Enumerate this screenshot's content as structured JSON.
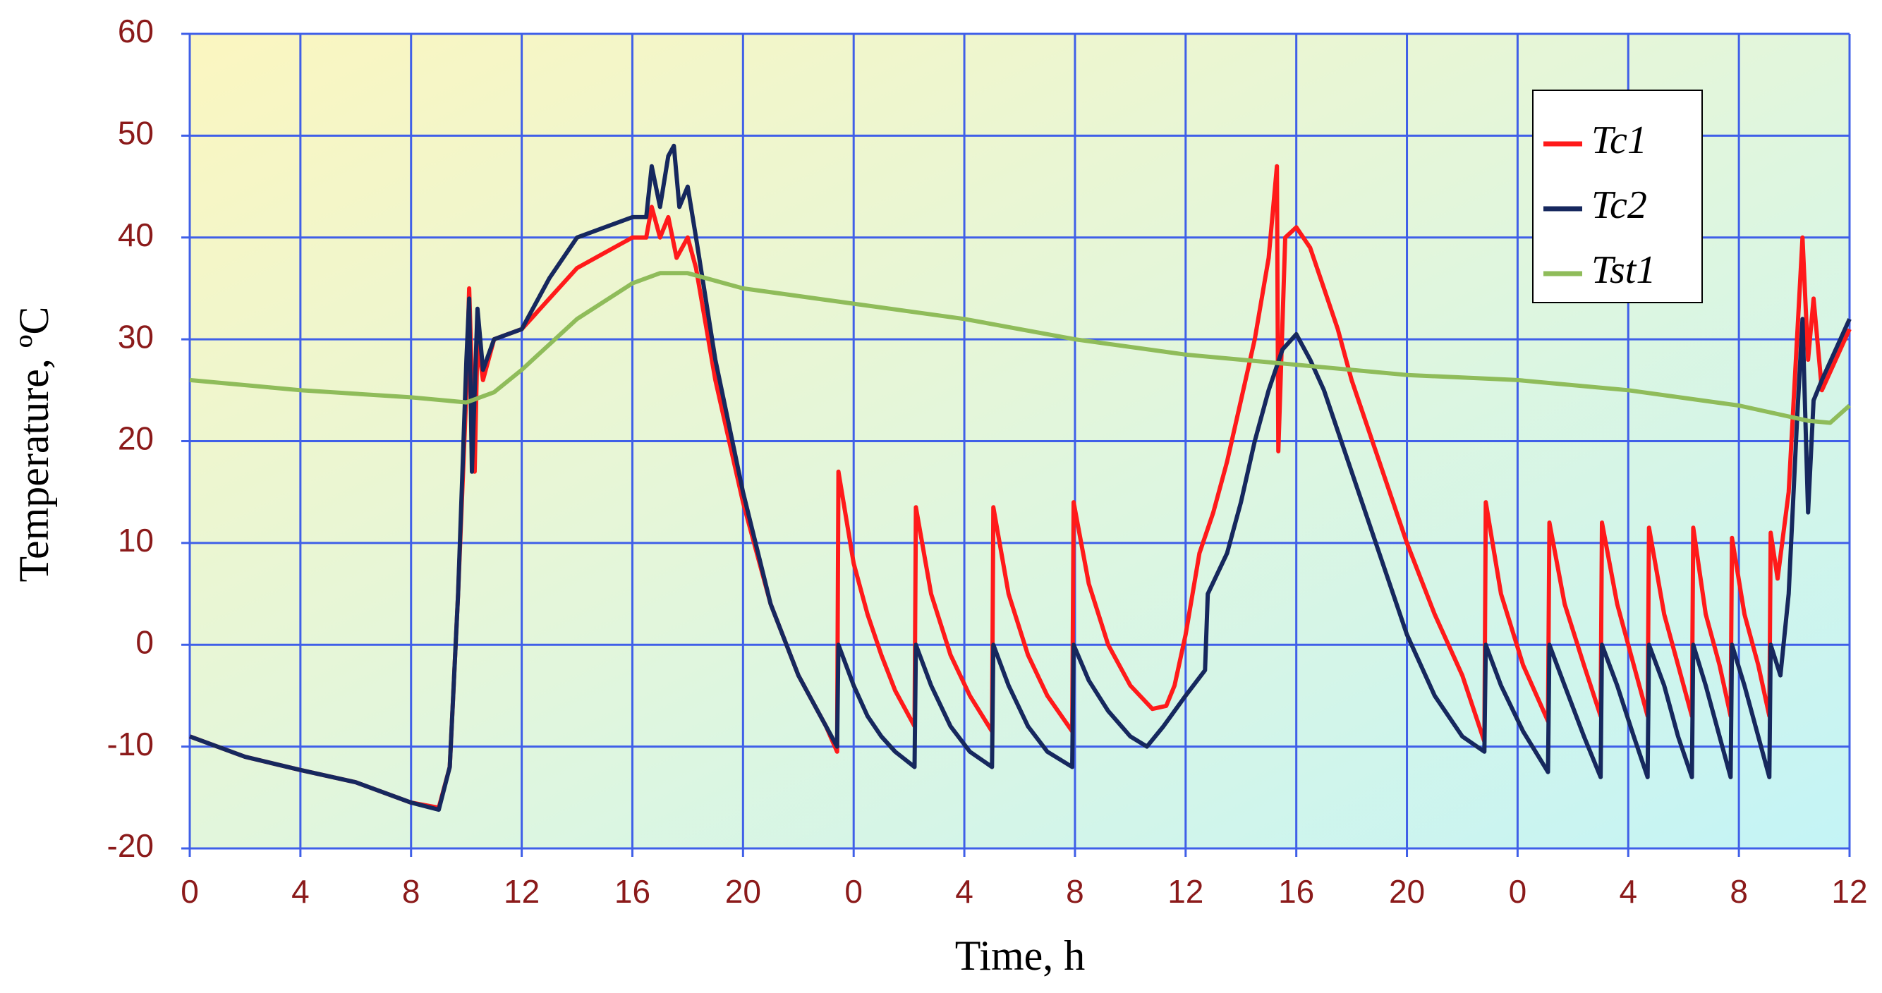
{
  "chart_data": {
    "type": "line",
    "xlabel": "Time, h",
    "ylabel": "Temperature, ºC",
    "grid": true,
    "legend": "upper right",
    "xlim": [
      0,
      60
    ],
    "ylim": [
      -20,
      60
    ],
    "xticks": [
      {
        "value": 0,
        "label": "0"
      },
      {
        "value": 4,
        "label": "4"
      },
      {
        "value": 8,
        "label": "8"
      },
      {
        "value": 12,
        "label": "12"
      },
      {
        "value": 16,
        "label": "16"
      },
      {
        "value": 20,
        "label": "20"
      },
      {
        "value": 24,
        "label": "0"
      },
      {
        "value": 28,
        "label": "4"
      },
      {
        "value": 32,
        "label": "8"
      },
      {
        "value": 36,
        "label": "12"
      },
      {
        "value": 40,
        "label": "16"
      },
      {
        "value": 44,
        "label": "20"
      },
      {
        "value": 48,
        "label": "0"
      },
      {
        "value": 52,
        "label": "4"
      },
      {
        "value": 56,
        "label": "8"
      },
      {
        "value": 60,
        "label": "12"
      }
    ],
    "yticks": [
      -20,
      -10,
      0,
      10,
      20,
      30,
      40,
      50,
      60
    ],
    "series": [
      {
        "name": "Tc1",
        "color": "#ff1a1a",
        "x": [
          0,
          2,
          4,
          6,
          8,
          9,
          9.4,
          9.7,
          10.0,
          10.1,
          10.3,
          10.4,
          10.6,
          11,
          12,
          13,
          14,
          15,
          16,
          16.5,
          16.7,
          17,
          17.3,
          17.6,
          18,
          18.3,
          19,
          20,
          21,
          22,
          23,
          23.4,
          23.45,
          24,
          24.5,
          25,
          25.5,
          26.2,
          26.25,
          26.8,
          27.5,
          28.2,
          29.0,
          29.05,
          29.6,
          30.3,
          31.0,
          31.9,
          31.95,
          32.5,
          33.2,
          34,
          34.8,
          35.3,
          35.6,
          36,
          36.5,
          37,
          37.5,
          38,
          38.5,
          39,
          39.3,
          39.35,
          39.6,
          40,
          40.5,
          41,
          41.5,
          42,
          43,
          44,
          45,
          46,
          46.8,
          46.85,
          47.4,
          48.2,
          49.1,
          49.15,
          49.7,
          50.4,
          51.0,
          51.05,
          51.6,
          52.2,
          52.7,
          52.75,
          53.3,
          53.8,
          54.3,
          54.35,
          54.8,
          55.3,
          55.7,
          55.75,
          56.2,
          56.7,
          57.1,
          57.15,
          57.4,
          57.8,
          58.1,
          58.3,
          58.5,
          58.7,
          59,
          59.5,
          60
        ],
        "values": [
          -9,
          -11,
          -12.3,
          -13.5,
          -15.5,
          -16,
          -12,
          5,
          25,
          35,
          17,
          30,
          26,
          30,
          31,
          34,
          37,
          38.5,
          40,
          40,
          43,
          40,
          42,
          38,
          40,
          37,
          26,
          14,
          4,
          -3,
          -8,
          -10.5,
          17,
          8,
          3,
          -1,
          -4.5,
          -8,
          13.5,
          5,
          -1,
          -5,
          -8.5,
          13.5,
          5,
          -1,
          -5,
          -8.5,
          14,
          6,
          0,
          -4,
          -6.3,
          -6,
          -4,
          1,
          9,
          13,
          18,
          24,
          30,
          38,
          47,
          19,
          40,
          41,
          39,
          35,
          31,
          26,
          18,
          10,
          3,
          -3,
          -9.5,
          14,
          5,
          -2,
          -7.5,
          12,
          4,
          -2,
          -7,
          12,
          4,
          -2,
          -7,
          11.5,
          3,
          -2,
          -7,
          11.5,
          3,
          -2,
          -7,
          10.5,
          3,
          -2,
          -7,
          11,
          6.5,
          15,
          30,
          40,
          28,
          34,
          25,
          28,
          31
        ]
      },
      {
        "name": "Tc2",
        "color": "#16285e",
        "x": [
          0,
          2,
          4,
          6,
          8,
          9,
          9.4,
          9.7,
          10.0,
          10.1,
          10.2,
          10.4,
          10.6,
          11,
          12,
          13,
          14,
          15,
          16,
          16.5,
          16.7,
          17,
          17.3,
          17.5,
          17.7,
          18,
          18.3,
          19,
          20,
          21,
          22,
          23,
          23.4,
          23.45,
          24,
          24.5,
          25,
          25.5,
          26.2,
          26.25,
          26.8,
          27.5,
          28.2,
          29.0,
          29.05,
          29.6,
          30.3,
          31.0,
          31.9,
          31.95,
          32.5,
          33.2,
          34,
          34.6,
          35.2,
          36,
          36.7,
          36.8,
          37.5,
          38,
          38.5,
          39,
          39.5,
          40,
          40.5,
          41,
          41.5,
          42,
          43,
          44,
          45,
          46,
          46.8,
          46.85,
          47.4,
          48.2,
          49.1,
          49.15,
          49.7,
          50.4,
          51.0,
          51.05,
          51.6,
          52.2,
          52.7,
          52.75,
          53.3,
          53.8,
          54.3,
          54.35,
          54.8,
          55.3,
          55.7,
          55.75,
          56.2,
          56.7,
          57.1,
          57.15,
          57.5,
          57.8,
          58.1,
          58.3,
          58.5,
          58.7,
          59,
          59.5,
          60
        ],
        "values": [
          -9,
          -11,
          -12.3,
          -13.5,
          -15.5,
          -16.2,
          -12,
          5,
          28,
          34,
          17,
          33,
          27,
          30,
          31,
          36,
          40,
          41,
          42,
          42,
          47,
          43,
          48,
          49,
          43,
          45,
          40,
          28,
          15,
          4,
          -3,
          -8,
          -10,
          0,
          -4,
          -7,
          -9,
          -10.5,
          -12,
          0,
          -4,
          -8,
          -10.5,
          -12,
          0,
          -4,
          -8,
          -10.5,
          -12,
          0,
          -3.5,
          -6.5,
          -9,
          -10,
          -8,
          -5,
          -2.5,
          5,
          9,
          14,
          20,
          25,
          29,
          30.5,
          28,
          25,
          21,
          17,
          9,
          1,
          -5,
          -9,
          -10.5,
          0,
          -4,
          -8.5,
          -12.5,
          0,
          -4,
          -9,
          -13,
          0,
          -4,
          -9,
          -13,
          0,
          -4,
          -9,
          -13,
          0,
          -4,
          -9,
          -13,
          0,
          -4,
          -9,
          -13,
          0,
          -3,
          5,
          22,
          32,
          13,
          24,
          26,
          29,
          32
        ]
      },
      {
        "name": "Tst1",
        "color": "#8fbc5a",
        "x": [
          0,
          4,
          8,
          10,
          11,
          12,
          14,
          16,
          17,
          18,
          20,
          24,
          28,
          32,
          36,
          40,
          44,
          48,
          52,
          56,
          58.5,
          59.3,
          60
        ],
        "values": [
          26,
          25,
          24.3,
          23.8,
          24.8,
          27,
          32,
          35.5,
          36.5,
          36.5,
          35,
          33.5,
          32,
          30,
          28.5,
          27.5,
          26.5,
          26,
          25,
          23.5,
          22,
          21.8,
          23.5
        ]
      }
    ]
  }
}
